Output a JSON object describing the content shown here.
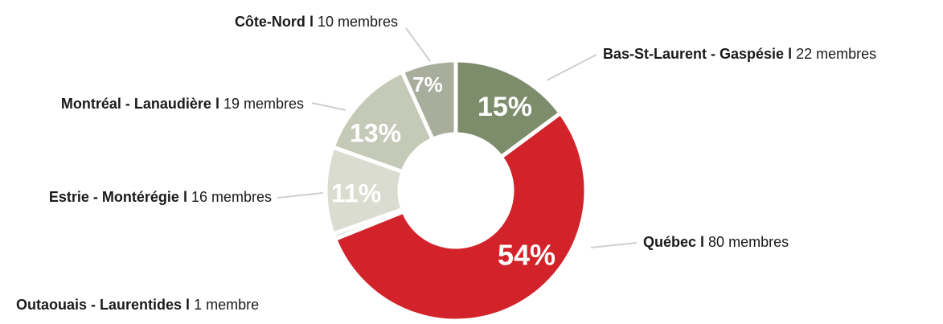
{
  "chart_data": {
    "type": "donut",
    "categories": [
      "Bas-St-Laurent - Gaspésie",
      "Québec",
      "Outaouais - Laurentides",
      "Estrie - Montérégie",
      "Montréal - Lanaudière",
      "Côte-Nord"
    ],
    "values": [
      22,
      80,
      1,
      16,
      19,
      10
    ],
    "value_labels": [
      "22 membres",
      "80 membres",
      "1 membre",
      "16 membres",
      "19 membres",
      "10 membres"
    ],
    "slice_labels": [
      "15%",
      "54%",
      null,
      "11%",
      "13%",
      "7%"
    ],
    "separator": "l",
    "colors": [
      "#7d8c6a",
      "#d2232a",
      "#e3e5dc",
      "#d9dccf",
      "#c5c9b7",
      "#a9ae9c"
    ]
  }
}
